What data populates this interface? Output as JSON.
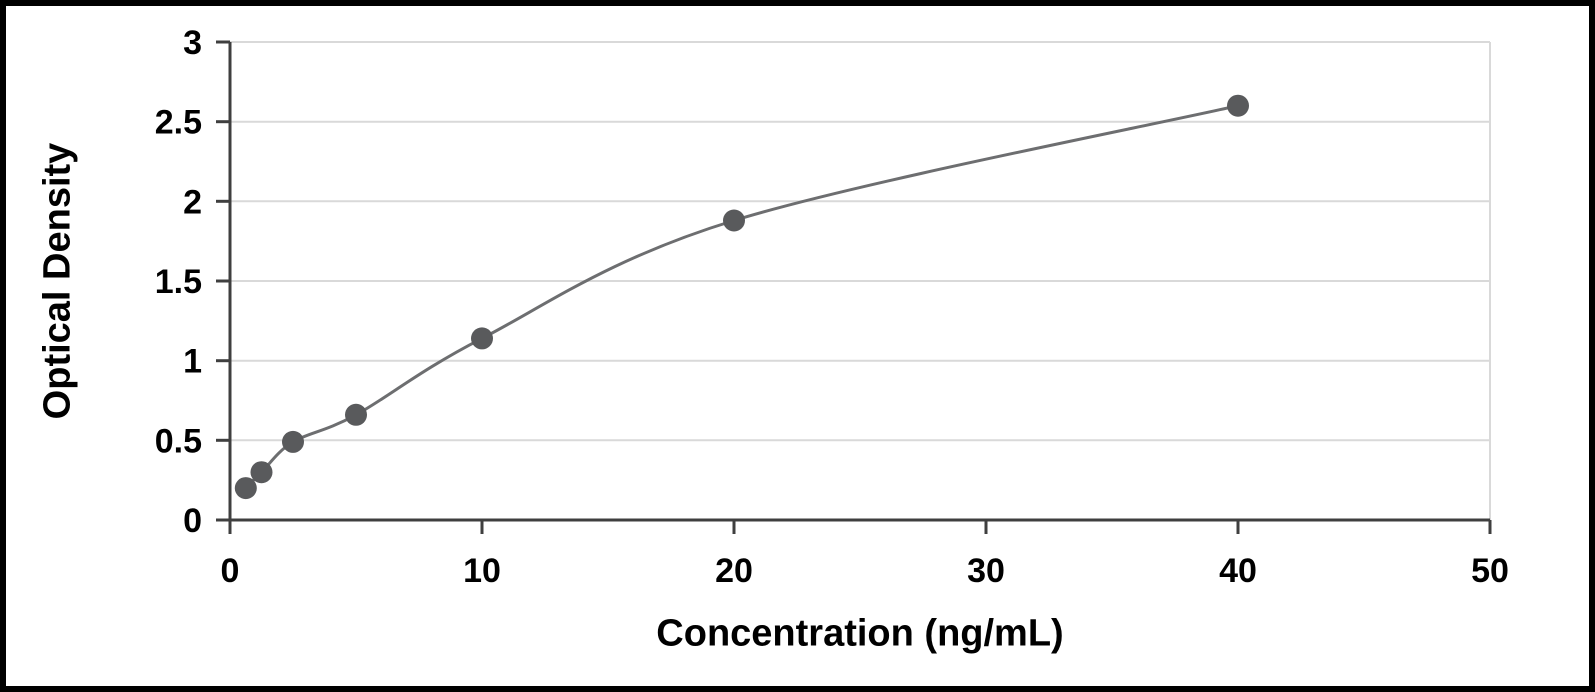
{
  "chart_data": {
    "type": "scatter",
    "title": "",
    "xlabel": "Concentration (ng/mL)",
    "ylabel": "Optical Density",
    "xlim": [
      0,
      50
    ],
    "ylim": [
      0,
      3
    ],
    "x_ticks": [
      0,
      10,
      20,
      30,
      40,
      50
    ],
    "y_ticks": [
      0,
      0.5,
      1,
      1.5,
      2,
      2.5,
      3
    ],
    "grid": "horizontal",
    "legend": "none",
    "points": [
      {
        "x": 0.625,
        "y": 0.2
      },
      {
        "x": 1.25,
        "y": 0.3
      },
      {
        "x": 2.5,
        "y": 0.49
      },
      {
        "x": 5,
        "y": 0.66
      },
      {
        "x": 10,
        "y": 1.14
      },
      {
        "x": 20,
        "y": 1.88
      },
      {
        "x": 40,
        "y": 2.6
      }
    ],
    "curve": "smooth-through-points",
    "colors": {
      "marker": "#595a5c",
      "line": "#6d6e70",
      "grid": "#d9d9d9",
      "axis": "#3f3f3f",
      "text": "#000000",
      "background": "#ffffff",
      "frame": "#000000"
    }
  }
}
